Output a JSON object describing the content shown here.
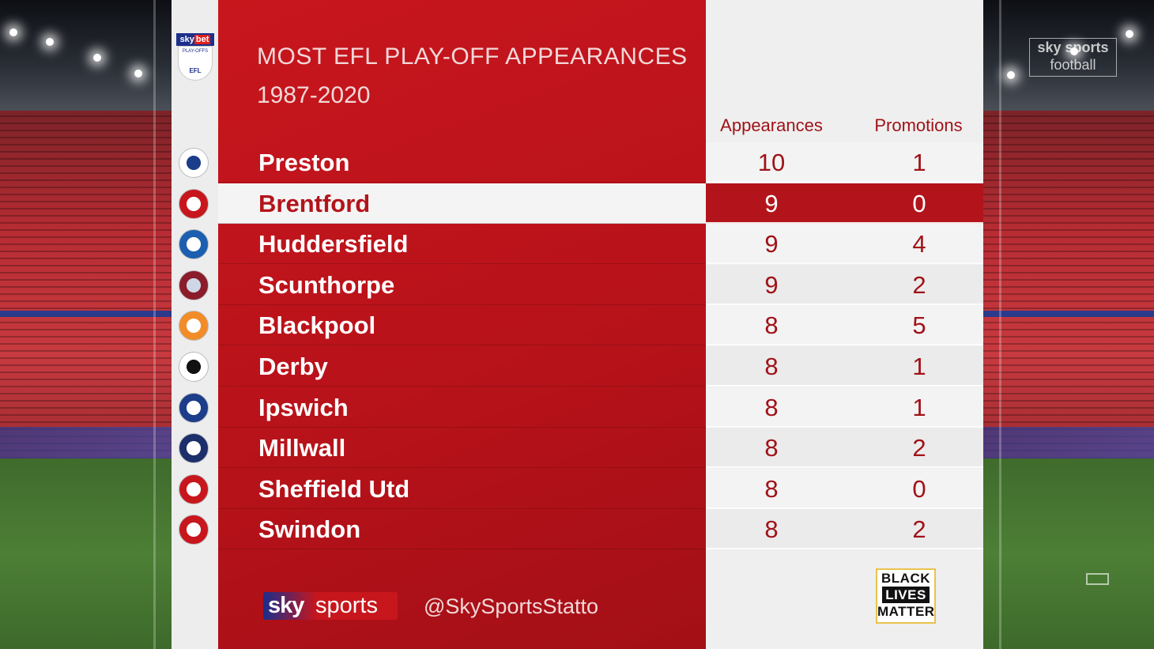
{
  "panel": {
    "title": "MOST EFL PLAY-OFF APPEARANCES",
    "subtitle": "1987-2020"
  },
  "table": {
    "headers": {
      "appearances": "Appearances",
      "promotions": "Promotions"
    },
    "highlight_index": 1,
    "rows": [
      {
        "team": "Preston",
        "appearances": "10",
        "promotions": "1",
        "crest_icon": "preston-crest-icon"
      },
      {
        "team": "Brentford",
        "appearances": "9",
        "promotions": "0",
        "crest_icon": "brentford-crest-icon"
      },
      {
        "team": "Huddersfield",
        "appearances": "9",
        "promotions": "4",
        "crest_icon": "huddersfield-crest-icon"
      },
      {
        "team": "Scunthorpe",
        "appearances": "9",
        "promotions": "2",
        "crest_icon": "scunthorpe-crest-icon"
      },
      {
        "team": "Blackpool",
        "appearances": "8",
        "promotions": "5",
        "crest_icon": "blackpool-crest-icon"
      },
      {
        "team": "Derby",
        "appearances": "8",
        "promotions": "1",
        "crest_icon": "derby-crest-icon"
      },
      {
        "team": "Ipswich",
        "appearances": "8",
        "promotions": "1",
        "crest_icon": "ipswich-crest-icon"
      },
      {
        "team": "Millwall",
        "appearances": "8",
        "promotions": "2",
        "crest_icon": "millwall-crest-icon"
      },
      {
        "team": "Sheffield Utd",
        "appearances": "8",
        "promotions": "0",
        "crest_icon": "sheffield-utd-crest-icon"
      },
      {
        "team": "Swindon",
        "appearances": "8",
        "promotions": "2",
        "crest_icon": "swindon-crest-icon"
      }
    ]
  },
  "competition_badge": {
    "sky": "sky",
    "bet": "bet",
    "playoffs": "PLAY-OFFS",
    "efl": "EFL"
  },
  "footer": {
    "sky": "sky",
    "sports": "sports",
    "handle": "@SkySportsStatto",
    "blm_line1": "BLACK",
    "blm_line2": "LIVES",
    "blm_line3": "MATTER"
  },
  "watermark": {
    "line1": "sky sports",
    "line2": "football"
  },
  "colors": {
    "red": "#c8161d",
    "dark_red": "#a01218",
    "white_panel": "#efefef",
    "sky_blue": "#1a2e8c"
  }
}
